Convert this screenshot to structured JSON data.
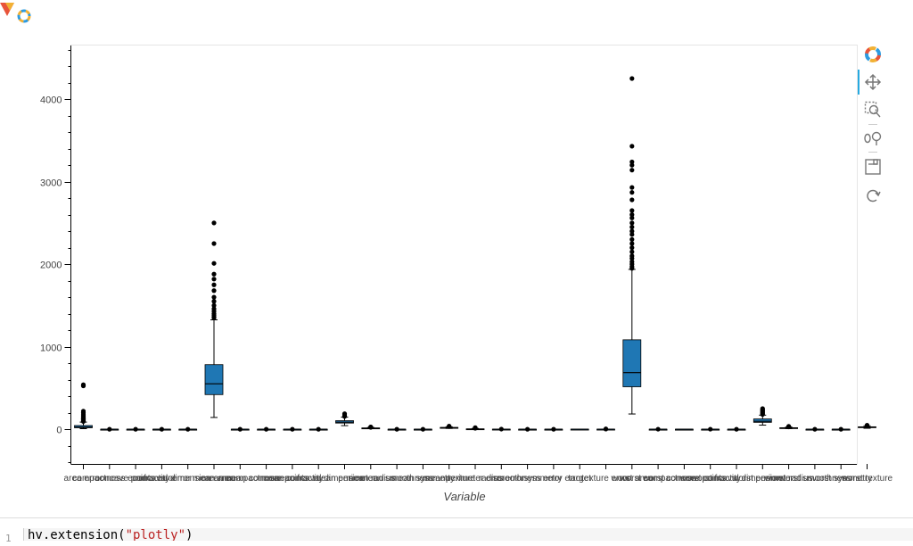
{
  "code_cell": {
    "line_number": "1",
    "prefix": "hv.extension(",
    "string": "\"plotly\"",
    "suffix": ")"
  },
  "toolbar": {
    "tools": [
      "bokeh-logo-icon",
      "pan-icon",
      "box-zoom-icon",
      "wheel-zoom-icon",
      "save-icon",
      "reset-icon"
    ]
  },
  "chart_data": {
    "type": "box",
    "title": "",
    "xlabel": "Variable",
    "ylabel": "",
    "ylim": [
      -420,
      4650
    ],
    "yticks": [
      0,
      1000,
      2000,
      3000,
      4000
    ],
    "y_minor_step": 200,
    "grid": false,
    "legend": "none",
    "box_color": "#1f77b4",
    "categories": [
      "area error",
      "compactness error",
      "concave points error",
      "concavity error",
      "fractal dimension error",
      "mean area",
      "mean compactness",
      "mean concave points",
      "mean concavity",
      "mean fractal dimension",
      "mean perimeter",
      "mean radius",
      "mean smoothness",
      "mean symmetry",
      "mean texture",
      "perimeter error",
      "radius error",
      "smoothness error",
      "symmetry error",
      "target",
      "texture error",
      "worst area",
      "worst compactness",
      "worst concave points",
      "worst concavity",
      "worst fractal dimension",
      "worst perimeter",
      "worst radius",
      "worst smoothness",
      "worst symmetry",
      "worst texture"
    ],
    "boxes": [
      {
        "min": 7,
        "q1": 18,
        "median": 25,
        "q3": 45,
        "max": 87,
        "outliers": [
          95,
          100,
          105,
          110,
          115,
          120,
          125,
          130,
          140,
          150,
          160,
          170,
          180,
          200,
          220,
          525,
          540
        ]
      },
      {
        "min": 0,
        "q1": 0,
        "median": 0,
        "q3": 0,
        "max": 0,
        "outliers": [
          0
        ]
      },
      {
        "min": 0,
        "q1": 0,
        "median": 0,
        "q3": 0,
        "max": 0,
        "outliers": [
          0
        ]
      },
      {
        "min": 0,
        "q1": 0,
        "median": 0,
        "q3": 0,
        "max": 0,
        "outliers": [
          0
        ]
      },
      {
        "min": 0,
        "q1": 0,
        "median": 0,
        "q3": 0,
        "max": 0,
        "outliers": [
          0
        ]
      },
      {
        "min": 143,
        "q1": 420,
        "median": 551,
        "q3": 783,
        "max": 1326,
        "outliers": [
          1350,
          1360,
          1380,
          1400,
          1430,
          1460,
          1500,
          1550,
          1600,
          1680,
          1750,
          1820,
          1880,
          2010,
          2250,
          2500
        ]
      },
      {
        "min": 0,
        "q1": 0,
        "median": 0,
        "q3": 0,
        "max": 0,
        "outliers": [
          0
        ]
      },
      {
        "min": 0,
        "q1": 0,
        "median": 0,
        "q3": 0,
        "max": 0,
        "outliers": [
          0
        ]
      },
      {
        "min": 0,
        "q1": 0,
        "median": 0,
        "q3": 0,
        "max": 0,
        "outliers": [
          0
        ]
      },
      {
        "min": 0,
        "q1": 0,
        "median": 0,
        "q3": 0,
        "max": 0,
        "outliers": [
          0
        ]
      },
      {
        "min": 44,
        "q1": 75,
        "median": 86,
        "q3": 104,
        "max": 147,
        "outliers": [
          155,
          165,
          175,
          188
        ]
      },
      {
        "min": 7,
        "q1": 12,
        "median": 13,
        "q3": 16,
        "max": 22,
        "outliers": [
          23,
          25,
          27,
          28
        ]
      },
      {
        "min": 0,
        "q1": 0,
        "median": 0,
        "q3": 0,
        "max": 0,
        "outliers": [
          0
        ]
      },
      {
        "min": 0,
        "q1": 0,
        "median": 0,
        "q3": 0,
        "max": 0,
        "outliers": [
          0
        ]
      },
      {
        "min": 10,
        "q1": 16,
        "median": 19,
        "q3": 22,
        "max": 30,
        "outliers": [
          33,
          39
        ]
      },
      {
        "min": 1,
        "q1": 2,
        "median": 2,
        "q3": 5,
        "max": 10,
        "outliers": [
          12,
          15,
          18,
          20
        ]
      },
      {
        "min": 0,
        "q1": 0,
        "median": 0,
        "q3": 1,
        "max": 1,
        "outliers": [
          2
        ]
      },
      {
        "min": 0,
        "q1": 0,
        "median": 0,
        "q3": 0,
        "max": 0,
        "outliers": [
          0
        ]
      },
      {
        "min": 0,
        "q1": 0,
        "median": 0,
        "q3": 0,
        "max": 0,
        "outliers": [
          0
        ]
      },
      {
        "min": 0,
        "q1": 0,
        "median": 1,
        "q3": 1,
        "max": 1,
        "outliers": []
      },
      {
        "min": 0,
        "q1": 1,
        "median": 1,
        "q3": 1,
        "max": 2,
        "outliers": [
          3,
          4
        ]
      },
      {
        "min": 185,
        "q1": 515,
        "median": 686,
        "q3": 1084,
        "max": 1937,
        "outliers": [
          1950,
          1970,
          2000,
          2030,
          2070,
          2100,
          2150,
          2200,
          2250,
          2300,
          2360,
          2400,
          2450,
          2500,
          2560,
          2600,
          2650,
          2780,
          2870,
          2930,
          3140,
          3200,
          3240,
          3430,
          4250
        ]
      },
      {
        "min": 0,
        "q1": 0,
        "median": 0,
        "q3": 0,
        "max": 1,
        "outliers": [
          1
        ]
      },
      {
        "min": 0,
        "q1": 0,
        "median": 0,
        "q3": 0,
        "max": 0,
        "outliers": []
      },
      {
        "min": 0,
        "q1": 0,
        "median": 0,
        "q3": 0,
        "max": 1,
        "outliers": [
          1
        ]
      },
      {
        "min": 0,
        "q1": 0,
        "median": 0,
        "q3": 0,
        "max": 0,
        "outliers": [
          0
        ]
      },
      {
        "min": 50,
        "q1": 84,
        "median": 97,
        "q3": 125,
        "max": 171,
        "outliers": [
          180,
          190,
          200,
          210,
          220,
          230,
          240,
          251
        ]
      },
      {
        "min": 8,
        "q1": 13,
        "median": 15,
        "q3": 19,
        "max": 27,
        "outliers": [
          28,
          30,
          32,
          36
        ]
      },
      {
        "min": 0,
        "q1": 0,
        "median": 0,
        "q3": 0,
        "max": 0,
        "outliers": [
          0
        ]
      },
      {
        "min": 0,
        "q1": 0,
        "median": 0,
        "q3": 0,
        "max": 0,
        "outliers": [
          0
        ]
      },
      {
        "min": 12,
        "q1": 21,
        "median": 25,
        "q3": 30,
        "max": 42,
        "outliers": [
          45,
          49
        ]
      }
    ]
  }
}
